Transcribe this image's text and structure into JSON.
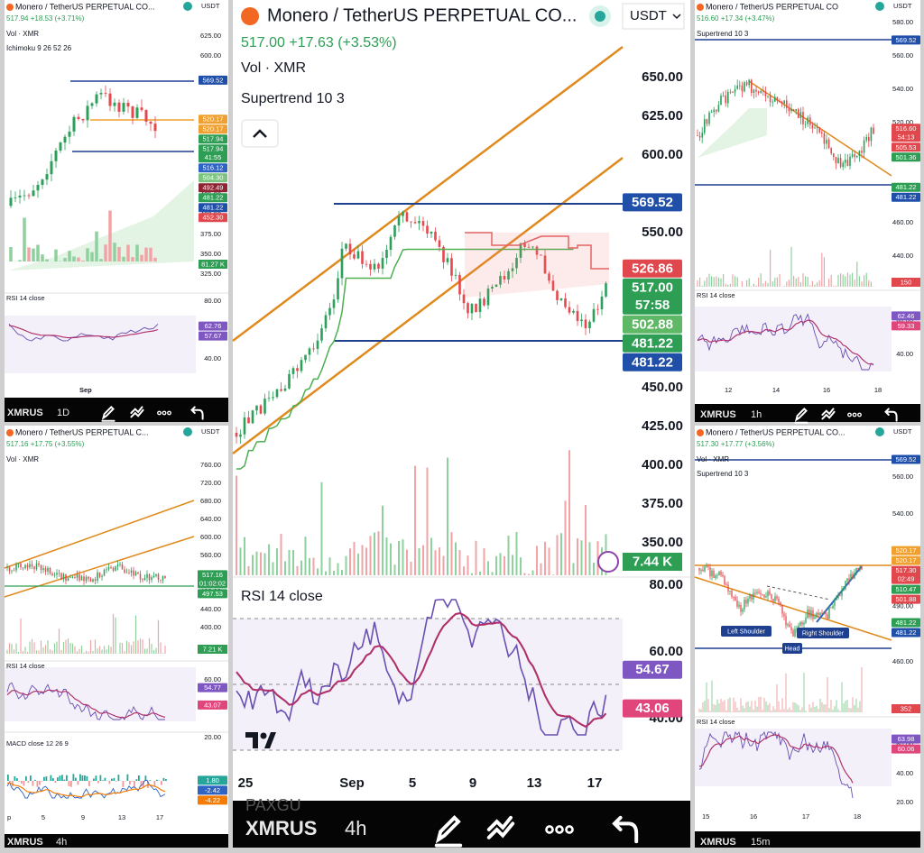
{
  "panels": [
    {
      "header": {
        "title": "Monero / TetherUS PERPETUAL CO...",
        "currency": "USDT",
        "quote": "517.94 +18.53 (+3.71%)",
        "indicators": [
          "Vol · XMR",
          "Ichimoku 9 26 52 26"
        ]
      },
      "price_axis": [
        "625.00",
        "600.00",
        "425.00",
        "400.00",
        "375.00",
        "350.00",
        "325.00"
      ],
      "price_tags": [
        {
          "label": "569.52",
          "color": "#1f4fa8"
        },
        {
          "label": "520.17",
          "color": "#f0a030"
        },
        {
          "label": "520.17",
          "color": "#f0a030"
        },
        {
          "label": "517.94",
          "color": "#2e9e55"
        },
        {
          "label": "517.94",
          "sub": "41:55",
          "color": "#2e9e55"
        },
        {
          "label": "516.12",
          "color": "#2f63c4"
        },
        {
          "label": "504.30",
          "color": "#7cc47f"
        },
        {
          "label": "492.49",
          "color": "#8e2433"
        },
        {
          "label": "481.22",
          "color": "#2e9e55"
        },
        {
          "label": "481.22",
          "color": "#1f4fa8"
        },
        {
          "label": "452.30",
          "color": "#e0484d"
        }
      ],
      "volume_tag": {
        "label": "81.27 K",
        "color": "#2e9e55"
      },
      "rsi": {
        "title": "RSI 14 close",
        "axis": [
          "80.00",
          "40.00"
        ],
        "tags": [
          {
            "label": "62.76",
            "color": "#7e57c2"
          },
          {
            "label": "57.67",
            "color": "#7e57c2"
          }
        ]
      },
      "time_axis": [
        "Sep"
      ],
      "toolbar": {
        "symbol": "XMRUS",
        "interval": "1D"
      }
    },
    {
      "header": {
        "title": "Monero / TetherUS PERPETUAL CO...",
        "currency": "USDT",
        "quote": "517.00 +17.63 (+3.53%)",
        "indicators": [
          "Vol · XMR",
          "Supertrend 10 3"
        ]
      },
      "price_axis": [
        "650.00",
        "625.00",
        "600.00",
        "550.00",
        "450.00",
        "425.00",
        "400.00",
        "375.00",
        "350.00"
      ],
      "price_tags": [
        {
          "label": "569.52",
          "color": "#1f4fa8"
        },
        {
          "label": "526.86",
          "color": "#e0484d"
        },
        {
          "label": "517.00",
          "sub": "57:58",
          "color": "#2e9e55"
        },
        {
          "label": "502.88",
          "color": "#5fb865"
        },
        {
          "label": "481.22",
          "color": "#2e9e55"
        },
        {
          "label": "481.22",
          "color": "#1f4fa8"
        }
      ],
      "volume_tag": {
        "label": "7.44 K",
        "color": "#2e9e55"
      },
      "rsi": {
        "title": "RSI 14 close",
        "axis": [
          "80.00",
          "60.00",
          "40.00"
        ],
        "tags": [
          {
            "label": "54.67",
            "color": "#7e57c2"
          },
          {
            "label": "43.06",
            "color": "#e0457b"
          }
        ]
      },
      "time_axis": [
        "25",
        "Sep",
        "5",
        "9",
        "13",
        "17"
      ],
      "toolbar": {
        "faded": "PAXGU",
        "symbol": "XMRUS",
        "interval": "4h"
      }
    },
    {
      "header": {
        "title": "Monero / TetherUS PERPETUAL CO",
        "currency": "USDT",
        "quote": "516.60 +17.34 (+3.47%)",
        "indicators": [
          "Supertrend 10 3"
        ]
      },
      "price_axis": [
        "580.00",
        "560.00",
        "540.00",
        "520.00",
        "500.00",
        "480.00",
        "460.00",
        "440.00"
      ],
      "price_tags": [
        {
          "label": "569.52",
          "color": "#1f4fa8"
        },
        {
          "label": "516.60",
          "sub": "54:13",
          "color": "#e0484d"
        },
        {
          "label": "505.53",
          "color": "#e0484d"
        },
        {
          "label": "501.36",
          "color": "#2e9e55"
        },
        {
          "label": "481.22",
          "color": "#2e9e55"
        },
        {
          "label": "481.22",
          "color": "#1f4fa8"
        }
      ],
      "volume_tag": {
        "label": "150",
        "color": "#e0484d"
      },
      "rsi": {
        "title": "RSI 14 close",
        "axis": [
          "60.00",
          "40.00"
        ],
        "tags": [
          {
            "label": "62.46",
            "color": "#7e57c2"
          },
          {
            "label": "59.33",
            "color": "#e0457b"
          }
        ]
      },
      "time_axis": [
        "12",
        "14",
        "16",
        "18"
      ],
      "toolbar": {
        "symbol": "XMRUS",
        "interval": "1h"
      }
    },
    {
      "header": {
        "title": "Monero / TetherUS PERPETUAL C...",
        "currency": "USDT",
        "quote": "517.16 +17.75 (+3.55%)",
        "indicators": [
          "Vol · XMR"
        ]
      },
      "price_axis": [
        "760.00",
        "720.00",
        "680.00",
        "640.00",
        "600.00",
        "560.00",
        "480.00",
        "440.00",
        "400.00"
      ],
      "price_tags": [
        {
          "label": "517.16",
          "sub": "01:02:02",
          "color": "#2e9e55"
        },
        {
          "label": "497.53",
          "color": "#2e9e55"
        }
      ],
      "volume_tag": {
        "label": "7.21 K",
        "color": "#2e9e55"
      },
      "rsi": {
        "title": "RSI 14 close",
        "axis": [
          "60.00"
        ],
        "tags": [
          {
            "label": "54.77",
            "color": "#7e57c2"
          },
          {
            "label": "43.07",
            "color": "#e0457b"
          }
        ]
      },
      "macd": {
        "title": "MACD close 12 26 9",
        "axis": [
          "20.00"
        ],
        "tags": [
          {
            "label": "1.80",
            "color": "#26a69a"
          },
          {
            "label": "-2.42",
            "color": "#2f63c4"
          },
          {
            "label": "-4.22",
            "color": "#f57c00"
          }
        ]
      },
      "time_axis": [
        "p",
        "5",
        "9",
        "13",
        "17"
      ],
      "toolbar": {
        "symbol": "XMRUS",
        "interval": "4h"
      }
    },
    {
      "header": {
        "title": "Monero / TetherUS PERPETUAL CO...",
        "currency": "USDT",
        "quote": "517.30 +17.77 (+3.56%)",
        "indicators": [
          "Vol · XMR",
          "Supertrend 10 3"
        ]
      },
      "price_axis": [
        "560.00",
        "540.00",
        "490.00",
        "460.00"
      ],
      "price_tags": [
        {
          "label": "569.52",
          "color": "#1f4fa8"
        },
        {
          "label": "520.17",
          "color": "#f0a030"
        },
        {
          "label": "520.17",
          "color": "#f0a030"
        },
        {
          "label": "517.30",
          "sub": "02:49",
          "color": "#e0484d"
        },
        {
          "label": "510.47",
          "color": "#2e9e55"
        },
        {
          "label": "501.88",
          "color": "#e0484d"
        },
        {
          "label": "481.22",
          "color": "#2e9e55"
        },
        {
          "label": "481.22",
          "color": "#1f4fa8"
        }
      ],
      "volume_tag": {
        "label": "352",
        "color": "#e0484d"
      },
      "annotations": [
        "Left Shoulder",
        "Head",
        "Right Shoulder"
      ],
      "rsi": {
        "title": "RSI 14 close",
        "axis": [
          "60.00",
          "40.00",
          "20.00"
        ],
        "tags": [
          {
            "label": "63.98",
            "color": "#7e57c2"
          },
          {
            "label": "60.06",
            "color": "#e0457b"
          }
        ]
      },
      "time_axis": [
        "15",
        "16",
        "17",
        "18"
      ],
      "toolbar": {
        "symbol": "XMRUS",
        "interval": "15m"
      }
    }
  ]
}
